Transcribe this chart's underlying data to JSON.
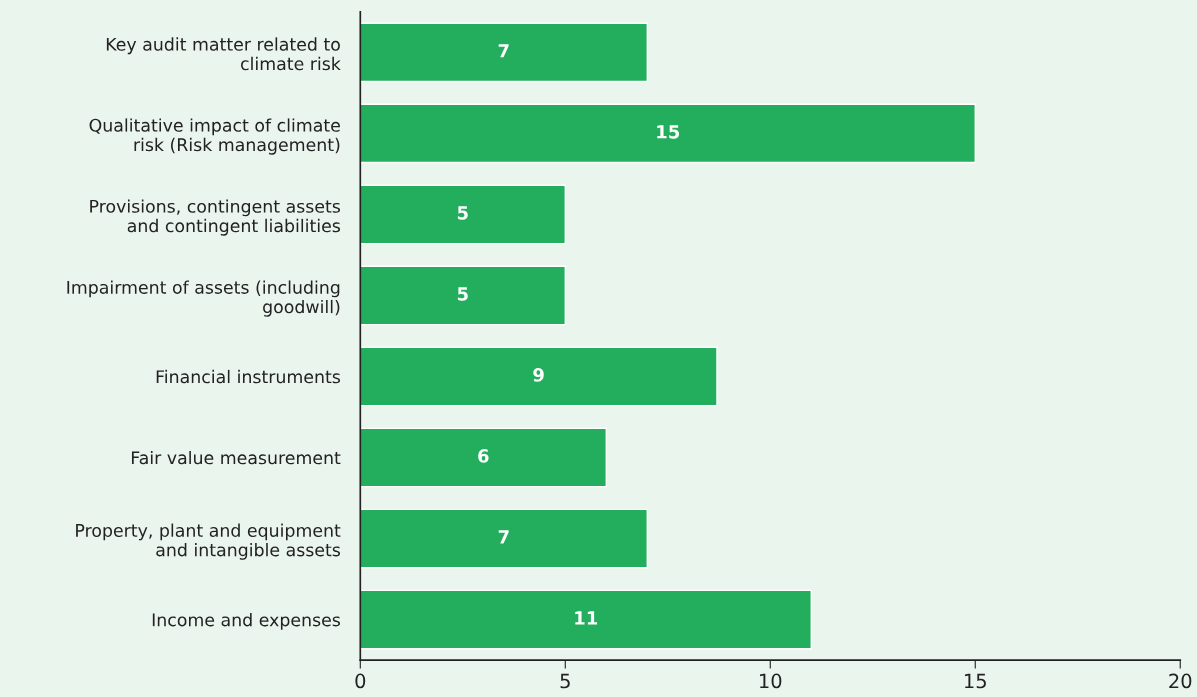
{
  "chart_data": {
    "type": "bar",
    "orientation": "horizontal",
    "categories": [
      "Key audit matter related to\nclimate risk",
      "Qualitative impact of climate\nrisk (Risk management)",
      "Provisions, contingent assets\nand contingent liabilities",
      "Impairment of assets (including\ngoodwill)",
      "Financial instruments",
      "Fair value measurement",
      "Property, plant and equipment\nand intangible assets",
      "Income and expenses"
    ],
    "values": [
      7,
      15,
      5,
      5,
      8.7,
      6,
      7,
      11
    ],
    "value_labels": [
      "7",
      "15",
      "5",
      "5",
      "9",
      "6",
      "7",
      "11"
    ],
    "color": "#22ae5c",
    "xlim": [
      0,
      20
    ],
    "xticks": [
      0,
      5,
      10,
      15,
      20
    ],
    "grid": false
  }
}
